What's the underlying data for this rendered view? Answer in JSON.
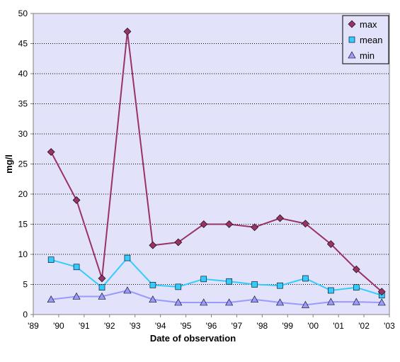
{
  "chart_data": {
    "type": "line",
    "title": "",
    "xlabel": "Date of observation",
    "ylabel": "mg/l",
    "ylim": [
      0,
      50
    ],
    "yticks": [
      "0",
      "5",
      "10",
      "15",
      "20",
      "25",
      "30",
      "35",
      "40",
      "45",
      "50"
    ],
    "xticks": [
      "'89",
      "'90",
      "'91",
      "'92",
      "'93",
      "'94",
      "'95",
      "'96",
      "'97",
      "'98",
      "'99",
      "'00",
      "'01",
      "'02",
      "'03"
    ],
    "xlim": [
      1989,
      2003
    ],
    "grid": "horizontal dotted",
    "legend_position": "top-right",
    "background_color": "#e2e2fa",
    "x": [
      1989.7,
      1990.7,
      1991.7,
      1992.7,
      1993.7,
      1994.7,
      1995.7,
      1996.7,
      1997.7,
      1998.7,
      1999.7,
      2000.7,
      2001.7,
      2002.7
    ],
    "series": [
      {
        "name": "max",
        "color": "#993366",
        "marker": "diamond",
        "values": [
          27,
          19,
          6,
          47,
          11.5,
          12,
          15,
          15,
          14.5,
          16,
          15.1,
          11.7,
          7.5,
          3.8
        ]
      },
      {
        "name": "mean",
        "color": "#33ccff",
        "marker": "square",
        "values": [
          9.1,
          7.9,
          4.5,
          9.4,
          4.9,
          4.6,
          5.9,
          5.5,
          5,
          4.8,
          6,
          4,
          4.5,
          3.2
        ]
      },
      {
        "name": "min",
        "color": "#9999ff",
        "marker": "triangle",
        "values": [
          2.5,
          3,
          3,
          4,
          2.5,
          2,
          2,
          2,
          2.5,
          2,
          1.6,
          2.1,
          2.1,
          2
        ]
      }
    ]
  }
}
